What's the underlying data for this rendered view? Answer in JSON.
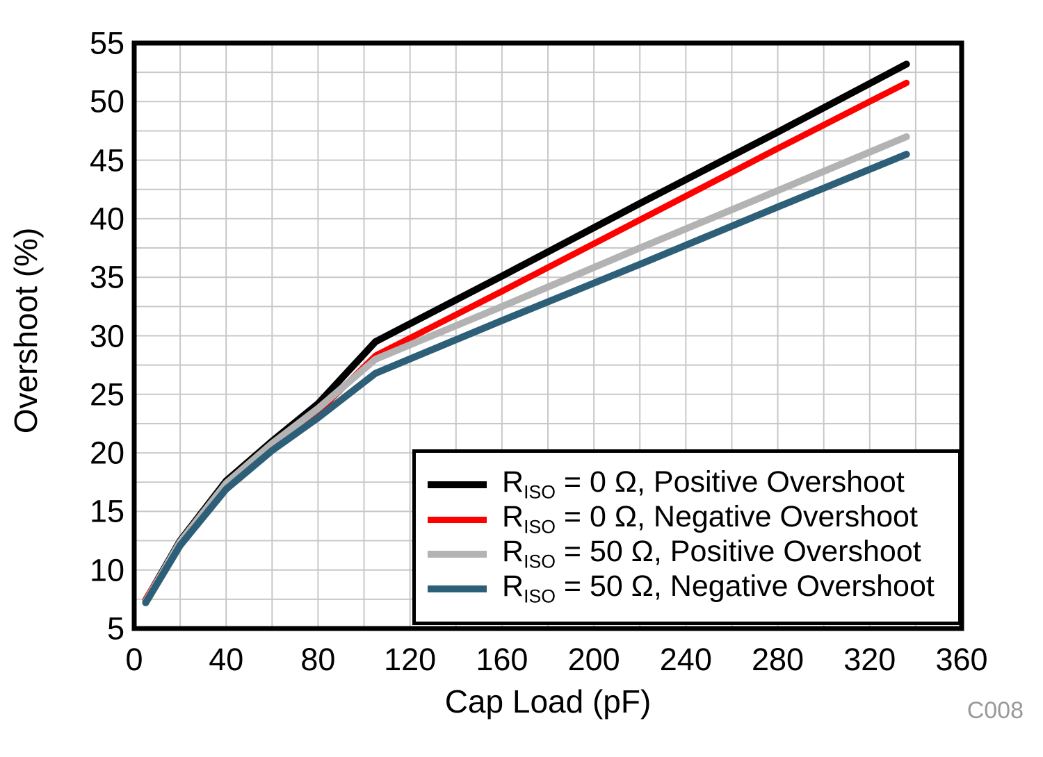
{
  "chart_data": {
    "type": "line",
    "title": "",
    "xlabel": "Cap Load (pF)",
    "ylabel": "Overshoot (%)",
    "xlim": [
      0,
      360
    ],
    "ylim": [
      5,
      55
    ],
    "x_major_ticks": [
      0,
      40,
      80,
      120,
      160,
      200,
      240,
      280,
      320,
      360
    ],
    "y_major_ticks": [
      5,
      10,
      15,
      20,
      25,
      30,
      35,
      40,
      45,
      50,
      55
    ],
    "x_minor_step": 20,
    "y_minor_step": 2.5,
    "grid": true,
    "legend_position": "inside-bottom-right",
    "series": [
      {
        "name": "RISO = 0 Ω, Positive Overshoot",
        "legend": {
          "base": "R",
          "sub": "ISO",
          "rest": " = 0 Ω, Positive Overshoot"
        },
        "color": "#000000",
        "line_width": 10,
        "points": [
          [
            5,
            7.4
          ],
          [
            20,
            12.5
          ],
          [
            40,
            17.6
          ],
          [
            60,
            21.0
          ],
          [
            80,
            24.2
          ],
          [
            105,
            29.5
          ],
          [
            160,
            35.1
          ],
          [
            220,
            41.3
          ],
          [
            280,
            47.4
          ],
          [
            336,
            53.2
          ]
        ]
      },
      {
        "name": "RISO = 0 Ω, Negative Overshoot",
        "legend": {
          "base": "R",
          "sub": "ISO",
          "rest": " = 0 Ω, Negative Overshoot"
        },
        "color": "#ff0000",
        "line_width": 9,
        "points": [
          [
            5,
            7.5
          ],
          [
            20,
            12.3
          ],
          [
            40,
            17.1
          ],
          [
            60,
            20.5
          ],
          [
            80,
            23.5
          ],
          [
            105,
            28.3
          ],
          [
            160,
            33.8
          ],
          [
            220,
            39.9
          ],
          [
            280,
            46.0
          ],
          [
            336,
            51.6
          ]
        ]
      },
      {
        "name": "RISO = 50 Ω, Positive Overshoot",
        "legend": {
          "base": "R",
          "sub": "ISO",
          "rest": " = 50 Ω, Positive Overshoot"
        },
        "color": "#b3b3b3",
        "line_width": 10,
        "points": [
          [
            5,
            7.3
          ],
          [
            20,
            12.4
          ],
          [
            40,
            17.4
          ],
          [
            60,
            20.8
          ],
          [
            80,
            23.8
          ],
          [
            105,
            28.0
          ],
          [
            160,
            32.5
          ],
          [
            220,
            37.5
          ],
          [
            280,
            42.4
          ],
          [
            336,
            47.0
          ]
        ]
      },
      {
        "name": "RISO = 50 Ω, Negative Overshoot",
        "legend": {
          "base": "R",
          "sub": "ISO",
          "rest": " = 50 Ω, Negative Overshoot"
        },
        "color": "#2d5f78",
        "line_width": 10,
        "points": [
          [
            5,
            7.2
          ],
          [
            20,
            12.1
          ],
          [
            40,
            16.9
          ],
          [
            60,
            20.2
          ],
          [
            80,
            23.0
          ],
          [
            105,
            26.8
          ],
          [
            160,
            31.3
          ],
          [
            220,
            36.1
          ],
          [
            280,
            41.0
          ],
          [
            336,
            45.5
          ]
        ]
      }
    ]
  },
  "annotations": {
    "code_label": "C008"
  },
  "colors": {
    "background": "#ffffff",
    "grid": "#c8c8c8",
    "axis_border": "#000000",
    "tick_text": "#000000",
    "code_label": "#999999"
  }
}
